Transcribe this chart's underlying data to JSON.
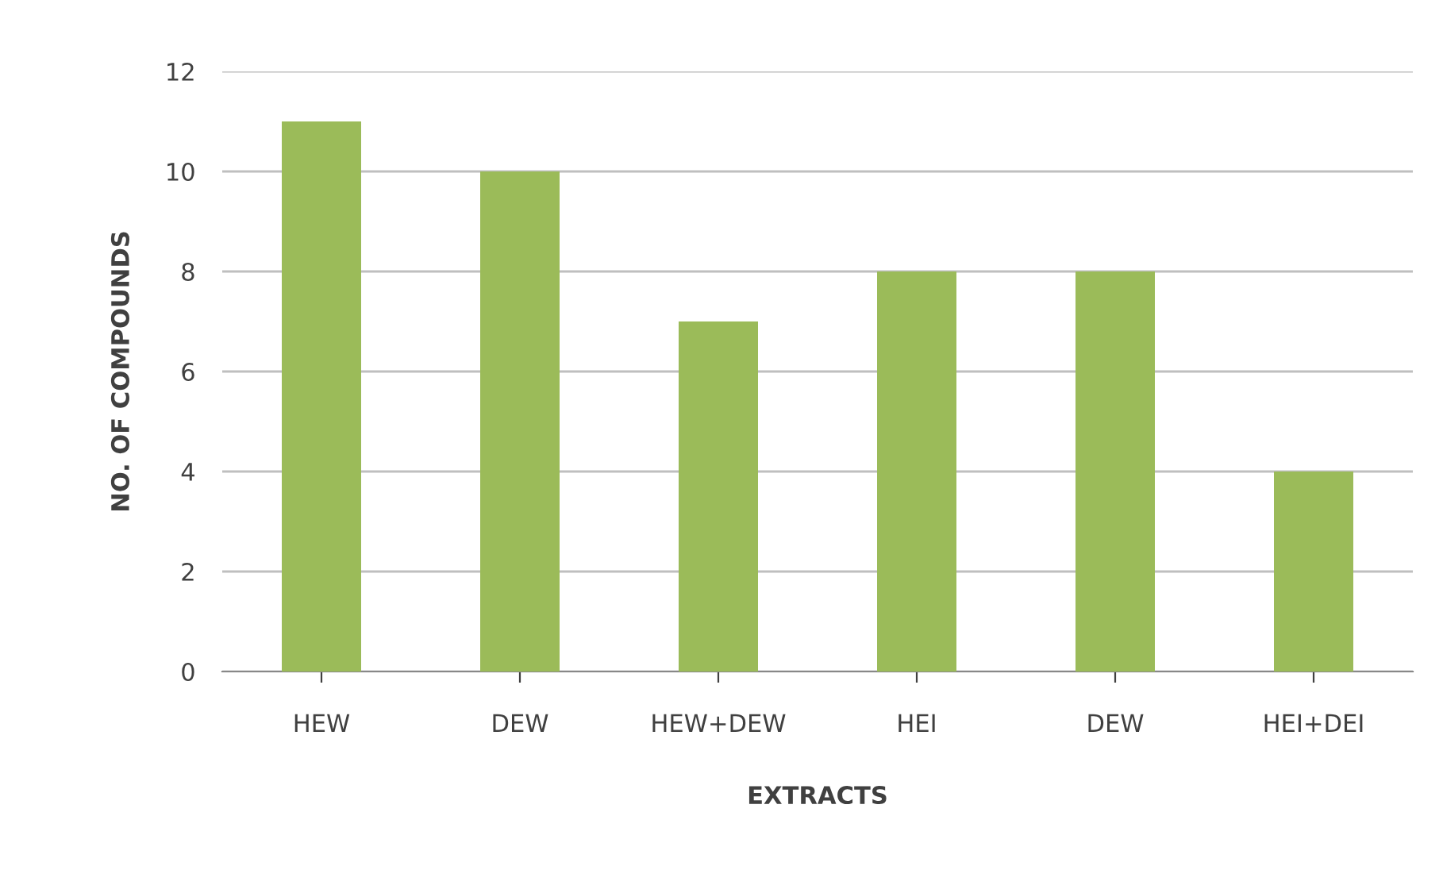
{
  "chart_data": {
    "type": "bar",
    "xlabel": "EXTRACTS",
    "ylabel": "NO. OF COMPOUNDS",
    "categories": [
      "HEW",
      "DEW",
      "HEW+DEW",
      "HEI",
      "DEW",
      "HEI+DEI"
    ],
    "values": [
      11,
      10,
      7,
      8,
      8,
      4
    ],
    "color": "#9bbb59",
    "ylim": [
      0,
      12
    ],
    "yticks": [
      0,
      2,
      4,
      6,
      8,
      10,
      12
    ],
    "grid": "y",
    "legend": false
  }
}
